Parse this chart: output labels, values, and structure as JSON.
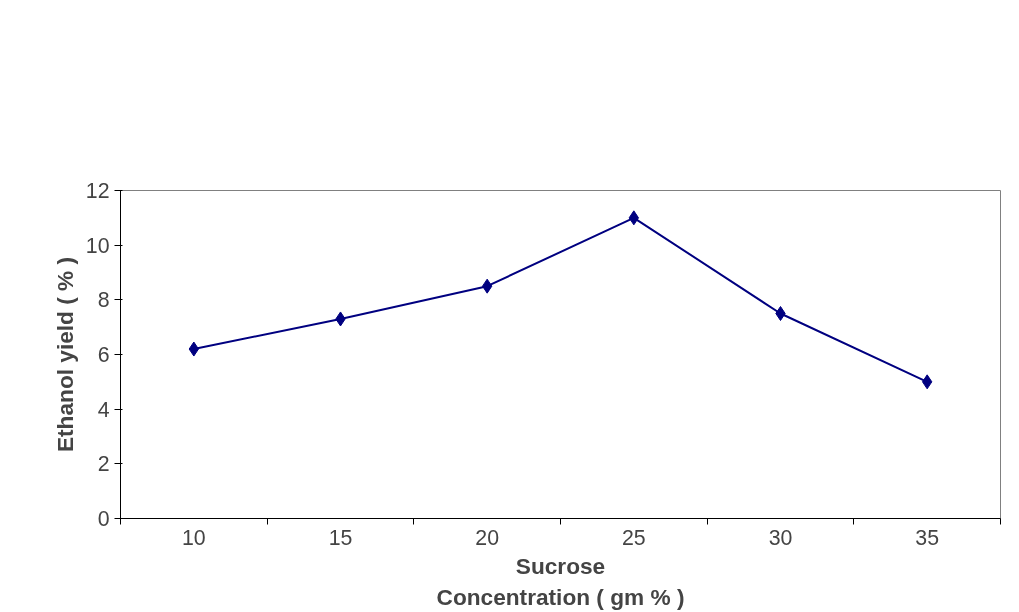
{
  "chart_data": {
    "type": "line",
    "xlabel": "Sucrose\nConcentration ( gm % )",
    "ylabel": "Ethanol yield ( % )",
    "categories": [
      "10",
      "15",
      "20",
      "25",
      "30",
      "35"
    ],
    "series": [
      {
        "color": "#000080",
        "values": [
          6.2,
          7.3,
          8.5,
          11,
          7.5,
          5
        ]
      }
    ],
    "ylim": [
      0,
      12
    ],
    "yticks": [
      0,
      2,
      4,
      6,
      8,
      10,
      12
    ],
    "grid": false,
    "marker": "diamond",
    "line_style": "solid"
  }
}
